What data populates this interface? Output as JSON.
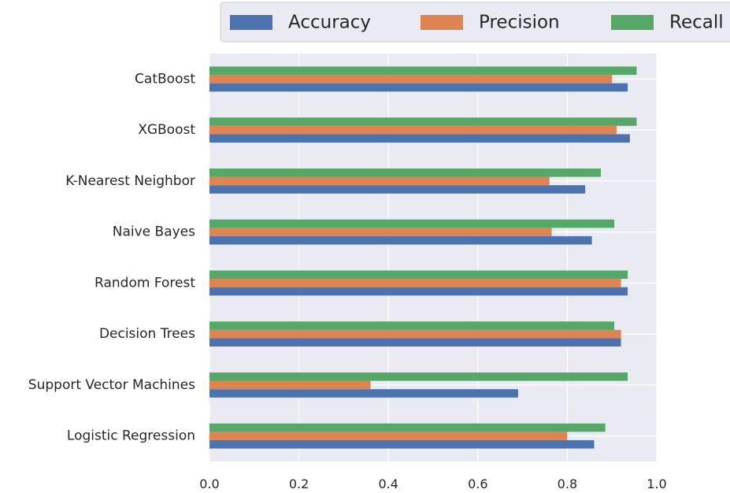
{
  "chart_data": {
    "type": "bar",
    "orientation": "horizontal",
    "categories": [
      "Logistic Regression",
      "Support Vector Machines",
      "Decision Trees",
      "Random Forest",
      "Naive Bayes",
      "K-Nearest Neighbor",
      "XGBoost",
      "CatBoost"
    ],
    "series": [
      {
        "name": "Accuracy",
        "color": "#4C72B0",
        "values": [
          0.86,
          0.69,
          0.92,
          0.935,
          0.855,
          0.84,
          0.94,
          0.935
        ]
      },
      {
        "name": "Precision",
        "color": "#DD8452",
        "values": [
          0.8,
          0.36,
          0.92,
          0.92,
          0.765,
          0.76,
          0.91,
          0.9
        ]
      },
      {
        "name": "Recall",
        "color": "#55A868",
        "values": [
          0.885,
          0.935,
          0.905,
          0.935,
          0.905,
          0.875,
          0.955,
          0.955
        ]
      }
    ],
    "xlim": [
      0.0,
      1.0
    ],
    "xticks": [
      "0.0",
      "0.2",
      "0.4",
      "0.6",
      "0.8",
      "1.0"
    ],
    "grid": true,
    "legend": "top",
    "background": "#EAEAF2",
    "gridline_color": "#FFFFFF"
  }
}
